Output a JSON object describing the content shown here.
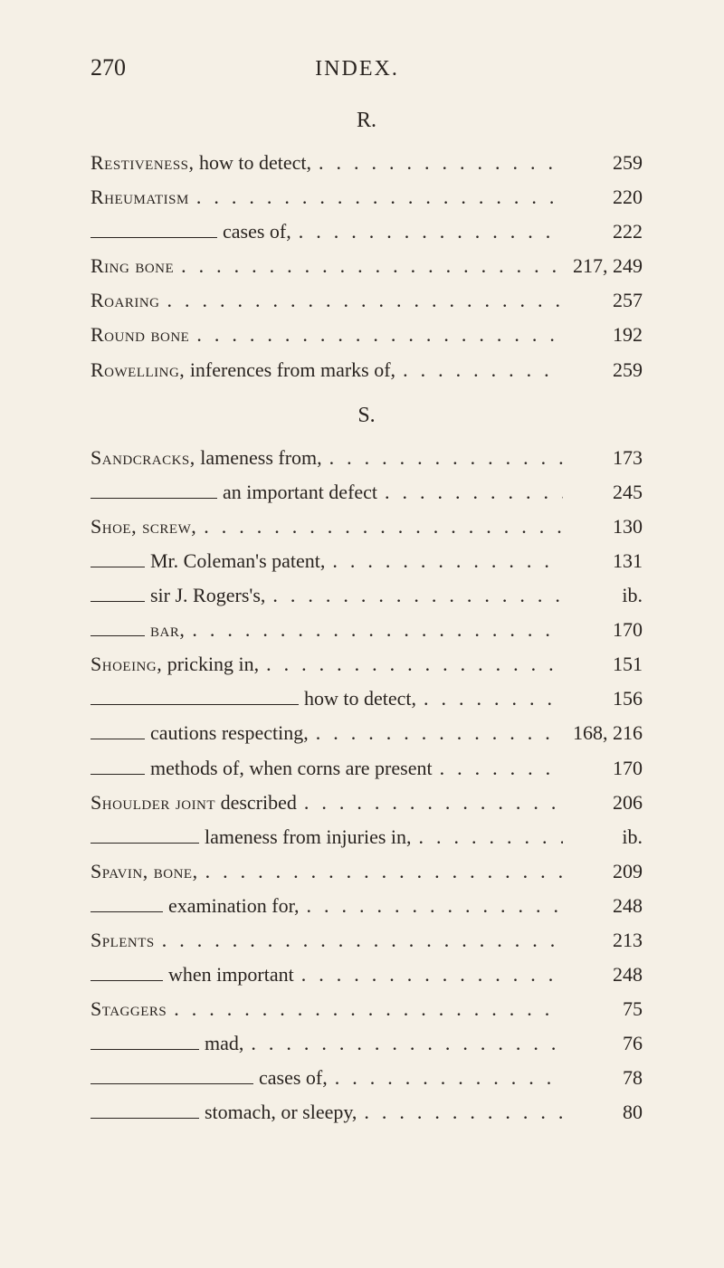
{
  "page_number": "270",
  "header": "INDEX.",
  "sections": [
    {
      "letter": "R.",
      "entries": [
        {
          "label_html": "<span class='sc'>Restiveness,</span> how to detect,",
          "page": "259",
          "dash": 0
        },
        {
          "label_html": "<span class='sc'>Rheumatism</span>",
          "page": "220",
          "dash": 0
        },
        {
          "label_html": "cases of,",
          "page": "222",
          "dash": 140
        },
        {
          "label_html": "<span class='sc'>Ring bone</span>",
          "page": "217, 249",
          "dash": 0
        },
        {
          "label_html": "<span class='sc'>Roaring</span>",
          "page": "257",
          "dash": 0
        },
        {
          "label_html": "<span class='sc'>Round bone</span>",
          "page": "192",
          "dash": 0
        },
        {
          "label_html": "<span class='sc'>Rowelling,</span> inferences from marks of,",
          "page": "259",
          "dash": 0
        }
      ]
    },
    {
      "letter": "S.",
      "entries": [
        {
          "label_html": "<span class='sc'>Sandcracks,</span> lameness from,",
          "page": "173",
          "dash": 0
        },
        {
          "label_html": "an important defect",
          "page": "245",
          "dash": 140
        },
        {
          "label_html": "<span class='sc'>Shoe, screw,</span>",
          "page": "130",
          "dash": 0
        },
        {
          "label_html": "Mr. Coleman's patent,",
          "page": "131",
          "dash": 60
        },
        {
          "label_html": "sir J. Rogers's,",
          "page": "ib.",
          "dash": 60
        },
        {
          "label_html": "<span class='sc'>bar,</span>",
          "page": "170",
          "dash": 60
        },
        {
          "label_html": "<span class='sc'>Shoeing,</span> pricking in,",
          "page": "151",
          "dash": 0
        },
        {
          "label_html": "how to detect,",
          "page": "156",
          "dash": 230
        },
        {
          "label_html": "cautions respecting,",
          "page": "168, 216",
          "dash": 60
        },
        {
          "label_html": "methods of, when corns are present",
          "page": "170",
          "dash": 60
        },
        {
          "label_html": "<span class='sc'>Shoulder joint</span> described",
          "page": "206",
          "dash": 0
        },
        {
          "label_html": "lameness from injuries in,",
          "page": "ib.",
          "dash": 120
        },
        {
          "label_html": "<span class='sc'>Spavin, bone,</span>",
          "page": "209",
          "dash": 0
        },
        {
          "label_html": "examination for,",
          "page": "248",
          "dash": 80
        },
        {
          "label_html": "<span class='sc'>Splents</span>",
          "page": "213",
          "dash": 0
        },
        {
          "label_html": "when important",
          "page": "248",
          "dash": 80
        },
        {
          "label_html": "<span class='sc'>Staggers</span>",
          "page": "75",
          "dash": 0
        },
        {
          "label_html": "mad,",
          "page": "76",
          "dash": 120
        },
        {
          "label_html": "cases of,",
          "page": "78",
          "dash": 180
        },
        {
          "label_html": "stomach, or sleepy,",
          "page": "80",
          "dash": 120
        }
      ]
    }
  ]
}
